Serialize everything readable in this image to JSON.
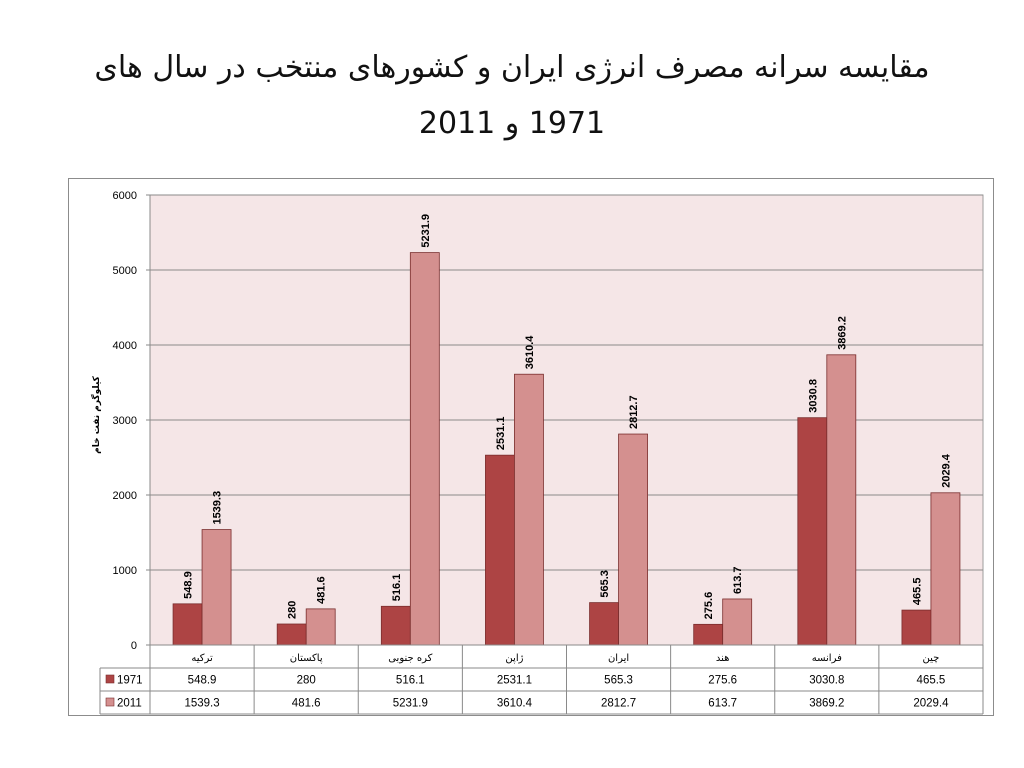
{
  "title": {
    "line1": "مقایسه سرانه مصرف انرژی ایران و کشورهای منتخب در سال های",
    "line2": "1971 و 2011"
  },
  "chart_data": {
    "type": "bar",
    "ylabel": "کیلوگرم نفت خام",
    "ylim": [
      0,
      6000
    ],
    "yticks": [
      0,
      1000,
      2000,
      3000,
      4000,
      5000,
      6000
    ],
    "grid": true,
    "legend": "data-table",
    "categories": [
      "ترکیه",
      "پاکستان",
      "کره جنوبی",
      "ژاپن",
      "ایران",
      "هند",
      "فرانسه",
      "چین"
    ],
    "series": [
      {
        "name": "1971",
        "color": "#ad4444",
        "values": [
          548.9,
          280,
          516.1,
          2531.1,
          565.3,
          275.6,
          3030.8,
          465.5
        ]
      },
      {
        "name": "2011",
        "color": "#d4908f",
        "values": [
          1539.3,
          481.6,
          5231.9,
          3610.4,
          2812.7,
          613.7,
          3869.2,
          2029.4
        ]
      }
    ],
    "plot_background": "#f5e6e7"
  }
}
